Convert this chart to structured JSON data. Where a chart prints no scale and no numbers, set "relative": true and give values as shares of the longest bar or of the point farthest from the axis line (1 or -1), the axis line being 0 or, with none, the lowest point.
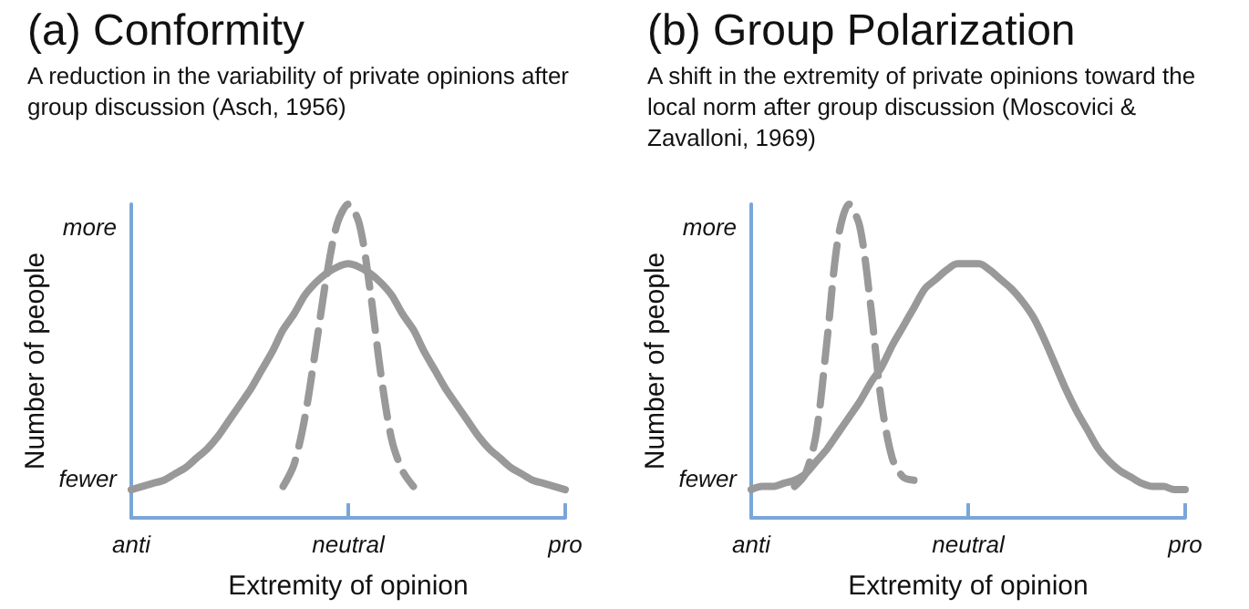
{
  "chart_data": [
    {
      "type": "line",
      "title": "(a) Conformity",
      "subtitle": "A reduction in the variability of private opinions after group discussion (Asch, 1956)",
      "xlabel": "Extremity of opinion",
      "ylabel": "Number of people",
      "relative": true,
      "annotations": [
        "more",
        "fewer"
      ],
      "grid": false,
      "marker": "none",
      "categories": [
        "anti",
        null,
        null,
        null,
        null,
        null,
        null,
        null,
        null,
        null,
        null,
        null,
        null,
        null,
        null,
        null,
        null,
        null,
        null,
        null,
        "neutral",
        null,
        null,
        null,
        null,
        null,
        null,
        null,
        null,
        null,
        null,
        null,
        null,
        null,
        null,
        null,
        null,
        null,
        null,
        null,
        "pro"
      ],
      "series": [
        {
          "color": "#999999",
          "line_style": "solid",
          "values": [
            0.09,
            0.1,
            0.11,
            0.12,
            0.14,
            0.16,
            0.19,
            0.22,
            0.26,
            0.31,
            0.36,
            0.41,
            0.47,
            0.53,
            0.6,
            0.65,
            0.71,
            0.75,
            0.78,
            0.8,
            0.81,
            0.8,
            0.78,
            0.75,
            0.71,
            0.65,
            0.6,
            0.53,
            0.47,
            0.41,
            0.36,
            0.31,
            0.26,
            0.22,
            0.19,
            0.16,
            0.14,
            0.12,
            0.11,
            0.1,
            0.09
          ]
        },
        {
          "color": "#999999",
          "line_style": "dashed",
          "values": [
            null,
            null,
            null,
            null,
            null,
            null,
            null,
            null,
            null,
            null,
            null,
            null,
            null,
            null,
            0.1,
            0.17,
            0.32,
            0.54,
            0.77,
            0.94,
            1,
            0.94,
            0.73,
            0.46,
            0.25,
            0.15,
            0.1,
            null,
            null,
            null,
            null,
            null,
            null,
            null,
            null,
            null,
            null,
            null,
            null,
            null,
            null
          ]
        }
      ]
    },
    {
      "type": "line",
      "title": "(b) Group Polarization",
      "subtitle": "A shift in the extremity of private opinions toward the local norm after group discussion (Moscovici & Zavalloni, 1969)",
      "xlabel": "Extremity of opinion",
      "ylabel": "Number of people",
      "relative": true,
      "annotations": [
        "more",
        "fewer"
      ],
      "grid": false,
      "marker": "none",
      "categories": [
        "anti",
        null,
        null,
        null,
        null,
        null,
        null,
        null,
        null,
        null,
        null,
        null,
        null,
        null,
        null,
        null,
        null,
        null,
        null,
        null,
        "neutral",
        null,
        null,
        null,
        null,
        null,
        null,
        null,
        null,
        null,
        null,
        null,
        null,
        null,
        null,
        null,
        null,
        null,
        null,
        null,
        "pro"
      ],
      "series": [
        {
          "color": "#999999",
          "line_style": "solid",
          "values": [
            0.09,
            0.1,
            0.1,
            0.11,
            0.12,
            0.14,
            0.18,
            0.22,
            0.27,
            0.32,
            0.37,
            0.43,
            0.48,
            0.55,
            0.61,
            0.67,
            0.73,
            0.76,
            0.79,
            0.81,
            0.81,
            0.81,
            0.79,
            0.76,
            0.73,
            0.69,
            0.64,
            0.57,
            0.49,
            0.41,
            0.34,
            0.28,
            0.22,
            0.18,
            0.15,
            0.13,
            0.11,
            0.1,
            0.1,
            0.09,
            0.09
          ]
        },
        {
          "color": "#999999",
          "line_style": "dashed",
          "values": [
            null,
            null,
            null,
            null,
            0.1,
            0.14,
            0.27,
            0.57,
            0.89,
            1,
            0.93,
            0.68,
            0.37,
            0.19,
            0.13,
            0.12,
            null,
            null,
            null,
            null,
            null,
            null,
            null,
            null,
            null,
            null,
            null,
            null,
            null,
            null,
            null,
            null,
            null,
            null,
            null,
            null,
            null,
            null,
            null,
            null,
            null
          ]
        }
      ]
    }
  ]
}
